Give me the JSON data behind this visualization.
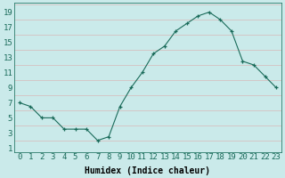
{
  "x": [
    0,
    1,
    2,
    3,
    4,
    5,
    6,
    7,
    8,
    9,
    10,
    11,
    12,
    13,
    14,
    15,
    16,
    17,
    18,
    19,
    20,
    21,
    22,
    23
  ],
  "y": [
    7,
    6.5,
    5,
    5,
    3.5,
    3.5,
    3.5,
    2,
    2.5,
    6.5,
    9,
    11,
    13.5,
    14.5,
    16.5,
    17.5,
    18.5,
    19,
    18,
    16.5,
    12.5,
    12,
    10.5,
    9
  ],
  "line_color": "#1a6b5a",
  "marker_color": "#1a6b5a",
  "bg_color": "#caeaea",
  "grid_color": "#d8b8b8",
  "xlabel": "Humidex (Indice chaleur)",
  "ylabel_ticks": [
    1,
    3,
    5,
    7,
    9,
    11,
    13,
    15,
    17,
    19
  ],
  "xtick_labels": [
    "0",
    "1",
    "2",
    "3",
    "4",
    "5",
    "6",
    "7",
    "8",
    "9",
    "10",
    "11",
    "12",
    "13",
    "14",
    "15",
    "16",
    "17",
    "18",
    "19",
    "20",
    "21",
    "22",
    "23"
  ],
  "ylim": [
    0.5,
    20.2
  ],
  "xlim": [
    -0.5,
    23.5
  ],
  "font_size": 6.5
}
